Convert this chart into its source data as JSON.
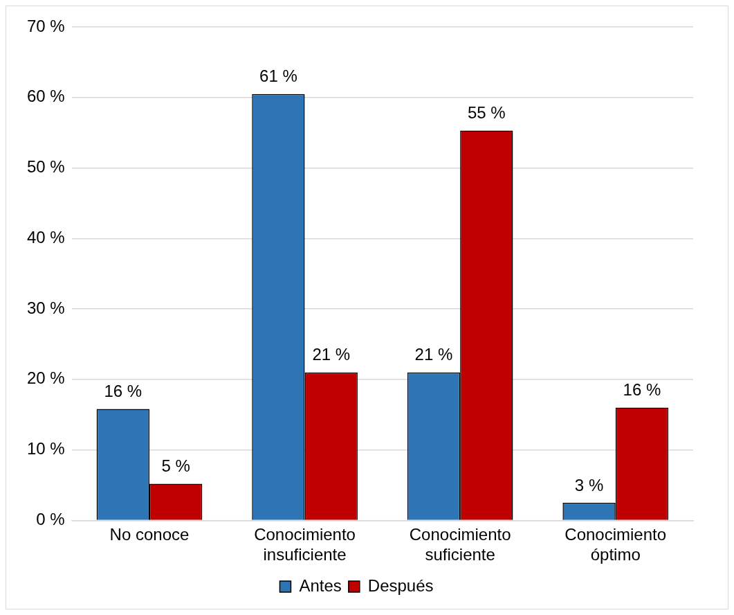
{
  "chart_data": {
    "type": "bar",
    "categories": [
      "No conoce",
      "Conocimiento\ninsuficiente",
      "Conocimiento\nsuficiente",
      "Conocimiento\nóptimo"
    ],
    "series": [
      {
        "name": "Antes",
        "color": "#2e75b6",
        "values": [
          15.8,
          60.5,
          21,
          2.5
        ],
        "value_labels": [
          "16 %",
          "61 %",
          "21 %",
          "3 %"
        ]
      },
      {
        "name": "Después",
        "color": "#c00000",
        "values": [
          5.2,
          21,
          55.3,
          16
        ],
        "value_labels": [
          "5 %",
          "21 %",
          "55 %",
          "16 %"
        ]
      }
    ],
    "ylim": [
      0,
      70
    ],
    "yticks": [
      {
        "value": 0,
        "label": "0 %"
      },
      {
        "value": 10,
        "label": "10 %"
      },
      {
        "value": 20,
        "label": "20 %"
      },
      {
        "value": 30,
        "label": "30 %"
      },
      {
        "value": 40,
        "label": "40 %"
      },
      {
        "value": 50,
        "label": "50 %"
      },
      {
        "value": 60,
        "label": "60 %"
      },
      {
        "value": 70,
        "label": "70 %"
      }
    ],
    "grid": "y",
    "legend": "bottom"
  }
}
